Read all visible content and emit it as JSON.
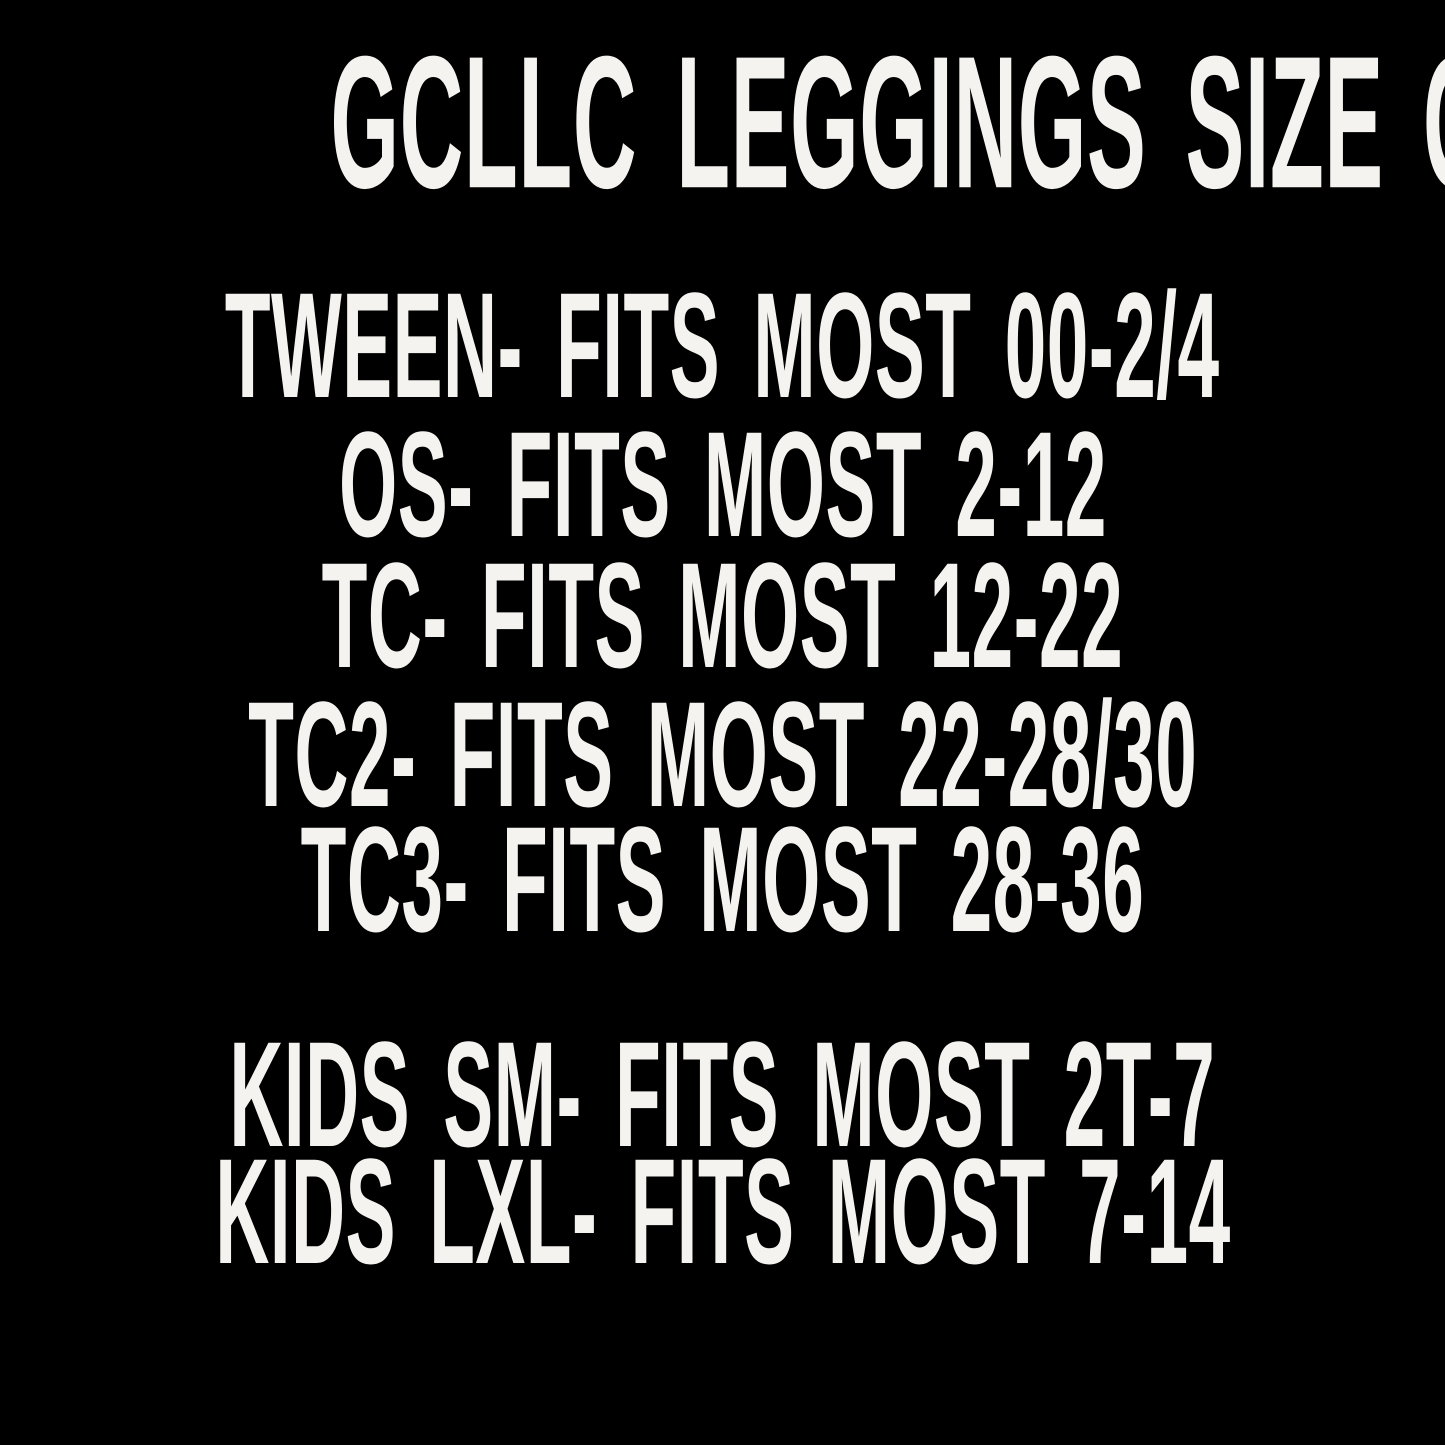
{
  "poster": {
    "title": "GCLLC LEGGINGS SIZE CHART",
    "background_color": "#000000",
    "text_color": "#f5f3ef",
    "adult_rows": [
      {
        "size": "TWEEN",
        "fits": "00-2/4",
        "text": "TWEEN- FITS MOST 00-2/4"
      },
      {
        "size": "OS",
        "fits": "2-12",
        "text": "OS- FITS MOST 2-12"
      },
      {
        "size": "TC",
        "fits": "12-22",
        "text": "TC- FITS MOST 12-22"
      },
      {
        "size": "TC2",
        "fits": "22-28/30",
        "text": "TC2- FITS MOST 22-28/30"
      },
      {
        "size": "TC3",
        "fits": "28-36",
        "text": "TC3- FITS MOST 28-36"
      }
    ],
    "kids_rows": [
      {
        "size": "KIDS SM",
        "fits": "2T-7",
        "text": "KIDS SM- FITS MOST 2T-7"
      },
      {
        "size": "KIDS LXL",
        "fits": "7-14",
        "text": "KIDS LXL- FITS MOST 7-14"
      }
    ]
  }
}
